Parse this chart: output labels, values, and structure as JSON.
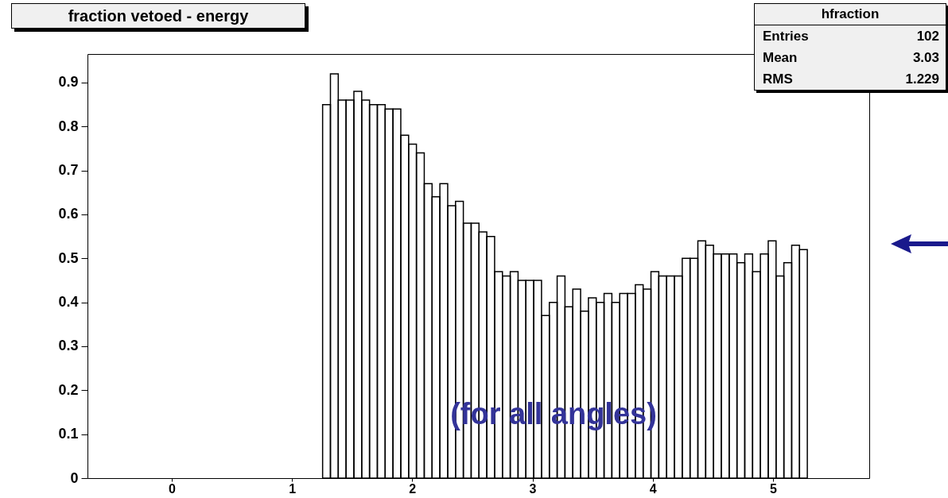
{
  "chart_data": {
    "type": "histogram",
    "title": "fraction vetoed - energy",
    "bins": [
      1.255,
      1.32,
      1.385,
      1.45,
      1.515,
      1.58,
      1.645,
      1.71,
      1.775,
      1.84,
      1.905,
      1.97,
      2.035,
      2.1,
      2.165,
      2.23,
      2.295,
      2.36,
      2.425,
      2.49,
      2.555,
      2.62,
      2.685,
      2.75,
      2.815,
      2.88,
      2.945,
      3.01,
      3.075,
      3.14,
      3.205,
      3.27,
      3.335,
      3.4,
      3.465,
      3.53,
      3.595,
      3.66,
      3.725,
      3.79,
      3.855,
      3.92,
      3.985,
      4.05,
      4.115,
      4.18,
      4.245,
      4.31,
      4.375,
      4.44,
      4.505,
      4.57,
      4.635,
      4.7,
      4.765,
      4.83,
      4.895,
      4.96,
      5.025,
      5.09,
      5.155,
      5.22,
      5.285
    ],
    "values": [
      0.85,
      0.92,
      0.86,
      0.86,
      0.88,
      0.86,
      0.85,
      0.85,
      0.84,
      0.84,
      0.78,
      0.76,
      0.74,
      0.67,
      0.64,
      0.67,
      0.62,
      0.63,
      0.58,
      0.58,
      0.56,
      0.55,
      0.47,
      0.46,
      0.47,
      0.45,
      0.45,
      0.45,
      0.37,
      0.4,
      0.46,
      0.39,
      0.43,
      0.38,
      0.41,
      0.4,
      0.42,
      0.4,
      0.42,
      0.42,
      0.44,
      0.43,
      0.47,
      0.46,
      0.46,
      0.46,
      0.5,
      0.5,
      0.54,
      0.53,
      0.51,
      0.51,
      0.51,
      0.49,
      0.51,
      0.47,
      0.51,
      0.54,
      0.46,
      0.49,
      0.53,
      0.52
    ],
    "color": "#000000",
    "xlim": [
      -0.7,
      5.8
    ],
    "xticks": [
      0,
      1,
      2,
      3,
      4,
      5
    ],
    "ylim": [
      0,
      0.965
    ],
    "yticks": [
      0,
      0.1,
      0.2,
      0.3,
      0.4,
      0.5,
      0.6,
      0.7,
      0.8,
      0.9
    ],
    "grid": false,
    "annotations": [
      "hfraction",
      "Entries",
      "102",
      "Mean",
      "3.03",
      "RMS",
      "1.229",
      "(for all angles)"
    ]
  }
}
